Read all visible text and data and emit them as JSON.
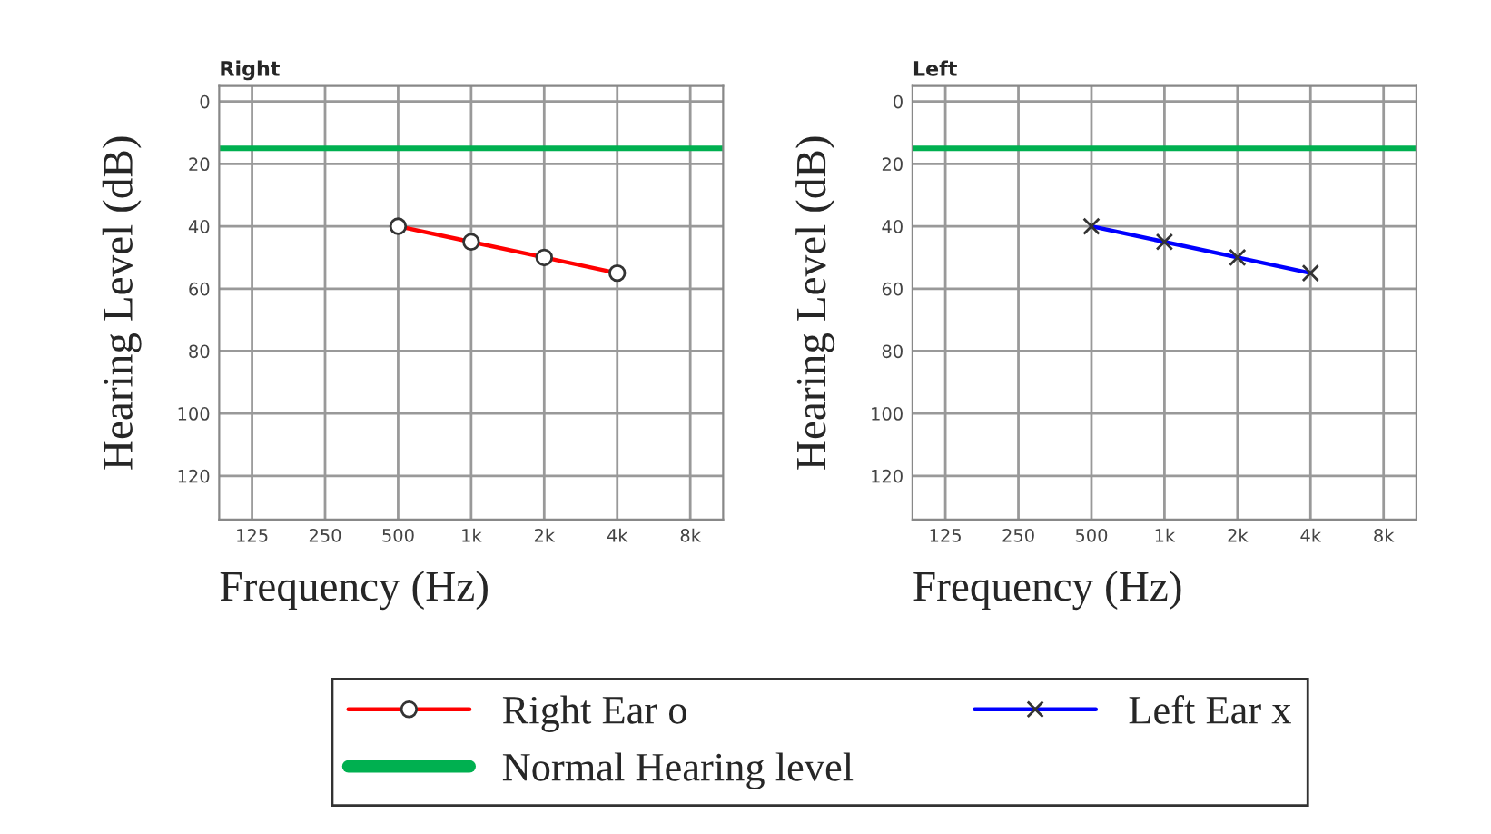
{
  "chart_data": [
    {
      "type": "line",
      "title": "Right",
      "xlabel": "Frequency (Hz)",
      "ylabel": "Hearing Level (dB)",
      "categories": [
        "125",
        "250",
        "500",
        "1k",
        "2k",
        "4k",
        "8k"
      ],
      "series": [
        {
          "name": "Right Ear o",
          "color": "#ff0000",
          "marker": "circle",
          "values": [
            null,
            null,
            40,
            45,
            50,
            55,
            null
          ]
        }
      ],
      "ylim": [
        134,
        -5
      ],
      "yticks": [
        0,
        20,
        40,
        60,
        80,
        100,
        120
      ],
      "grid": true,
      "legend": "bottom",
      "ref_lines": [
        {
          "axis": "y",
          "value": 15,
          "label": "Normal Hearing level",
          "color": "#00b050"
        }
      ]
    },
    {
      "type": "line",
      "title": "Left",
      "xlabel": "Frequency (Hz)",
      "ylabel": "Hearing Level (dB)",
      "categories": [
        "125",
        "250",
        "500",
        "1k",
        "2k",
        "4k",
        "8k"
      ],
      "series": [
        {
          "name": "Left Ear x",
          "color": "#0000ff",
          "marker": "cross",
          "values": [
            null,
            null,
            40,
            45,
            50,
            55,
            null
          ]
        }
      ],
      "ylim": [
        134,
        -5
      ],
      "yticks": [
        0,
        20,
        40,
        60,
        80,
        100,
        120
      ],
      "grid": true,
      "legend": "bottom",
      "ref_lines": [
        {
          "axis": "y",
          "value": 15,
          "label": null,
          "color": "#00b050"
        }
      ]
    }
  ]
}
